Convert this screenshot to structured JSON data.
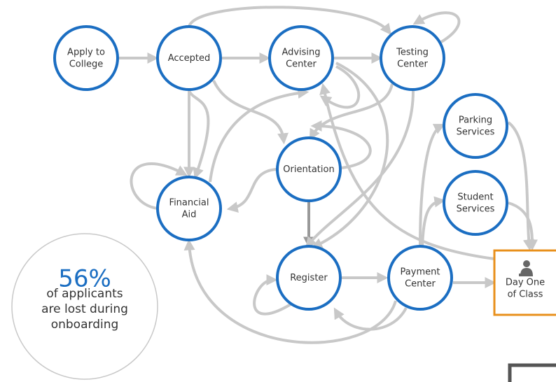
{
  "nodes": [
    {
      "label": [
        "Apply to",
        "College"
      ]
    },
    {
      "label": [
        "Accepted"
      ]
    },
    {
      "label": [
        "Advising",
        "Center"
      ]
    },
    {
      "label": [
        "Testing",
        "Center"
      ]
    },
    {
      "label": [
        "Parking",
        "Services"
      ]
    },
    {
      "label": [
        "Orientation"
      ]
    },
    {
      "label": [
        "Student",
        "Services"
      ]
    },
    {
      "label": [
        "Financial",
        "Aid"
      ]
    },
    {
      "label": [
        "Register"
      ]
    },
    {
      "label": [
        "Payment",
        "Center"
      ]
    }
  ],
  "destination": {
    "label": [
      "Day One",
      "of Class"
    ]
  },
  "stat": {
    "value": "56%",
    "text": [
      "of applicants",
      "are lost during",
      "onboarding"
    ]
  }
}
